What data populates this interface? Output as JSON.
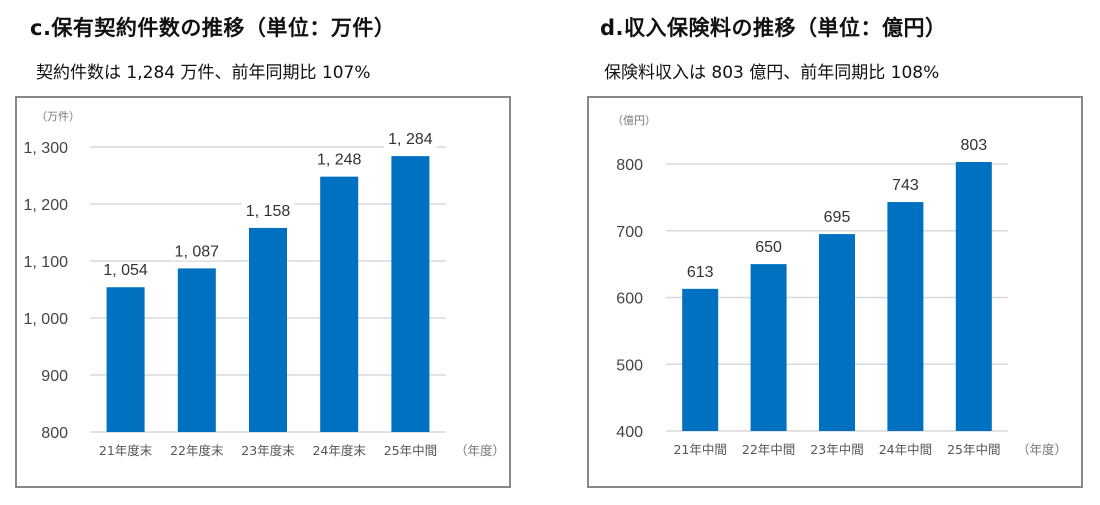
{
  "chart_data": [
    {
      "type": "bar",
      "title": "c.保有契約件数の推移（単位：万件）",
      "subtitle": "契約件数は 1,284 万件、前年同期比 107%",
      "ylabel": "（万件）",
      "xlabel": "（年度）",
      "categories": [
        "21年度末",
        "22年度末",
        "23年度末",
        "24年度末",
        "25年中間"
      ],
      "values": [
        1054,
        1087,
        1158,
        1248,
        1284
      ],
      "data_labels": [
        "1, 054",
        "1, 087",
        "1, 158",
        "1, 248",
        "1, 284"
      ],
      "yticks": [
        800,
        900,
        1000,
        1100,
        1200,
        1300
      ],
      "ytick_labels": [
        "800",
        "900",
        "1, 000",
        "1, 100",
        "1, 200",
        "1, 300"
      ],
      "ylim": [
        800,
        1300
      ],
      "grid": true,
      "bar_color": "#0070c0"
    },
    {
      "type": "bar",
      "title": "d.収入保険料の推移（単位：億円）",
      "subtitle": "保険料収入は 803 億円、前年同期比 108%",
      "ylabel": "（億円）",
      "xlabel": "（年度）",
      "categories": [
        "21年中間",
        "22年中間",
        "23年中間",
        "24年中間",
        "25年中間"
      ],
      "values": [
        613,
        650,
        695,
        743,
        803
      ],
      "data_labels": [
        "613",
        "650",
        "695",
        "743",
        "803"
      ],
      "yticks": [
        400,
        500,
        600,
        700,
        800
      ],
      "ytick_labels": [
        "400",
        "500",
        "600",
        "700",
        "800"
      ],
      "ylim": [
        400,
        800
      ],
      "grid": true,
      "bar_color": "#0070c0"
    }
  ]
}
